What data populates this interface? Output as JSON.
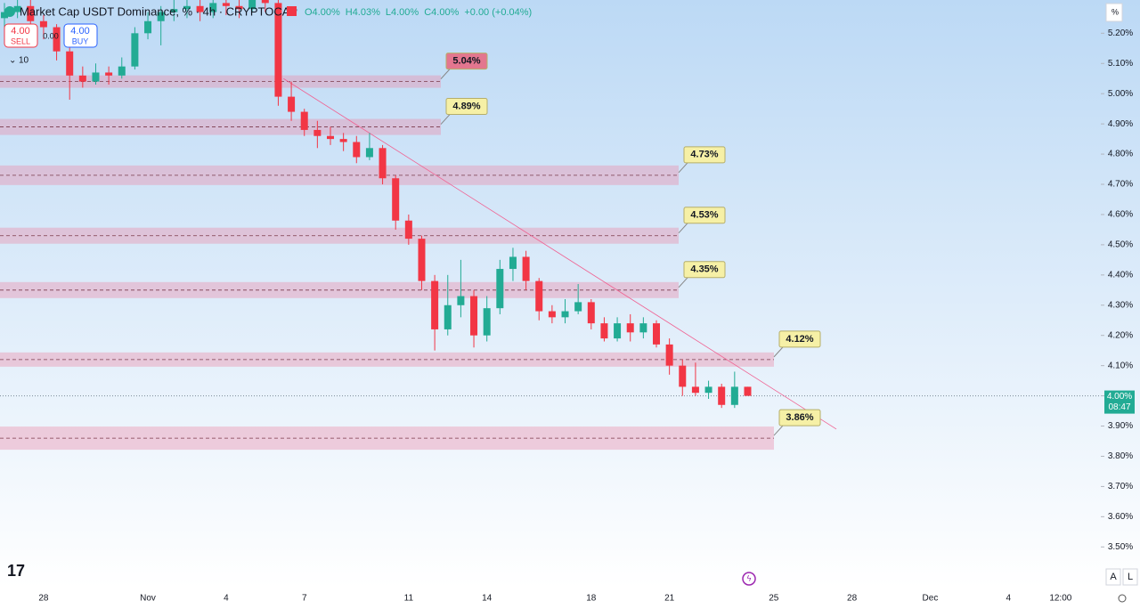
{
  "header": {
    "title": "Market Cap USDT Dominance, % · 4h · CRYPTOCAP",
    "ohlc": [
      "O4.00%",
      "H4.03%",
      "L4.00%",
      "C4.00%",
      "+0.00 (+0.04%)"
    ],
    "sell_price": "4.00",
    "sell_label": "SELL",
    "spread": "0.00",
    "buy_price": "4.00",
    "buy_label": "BUY",
    "indicators": "10",
    "axis_unit": "%",
    "countdown": "08:47",
    "scale_buttons": [
      "A",
      "L"
    ]
  },
  "chart_data": {
    "type": "candlestick",
    "categories": [
      null,
      null,
      null,
      "28",
      null,
      null,
      null,
      null,
      null,
      null,
      null,
      "Nov",
      null,
      null,
      null,
      null,
      null,
      "4",
      null,
      null,
      null,
      null,
      null,
      "7",
      null,
      null,
      null,
      null,
      null,
      null,
      null,
      "11",
      null,
      null,
      null,
      null,
      null,
      "14",
      null,
      null,
      null,
      null,
      null,
      null,
      null,
      "18",
      null,
      null,
      null,
      null,
      null,
      "21",
      null,
      null,
      null,
      null,
      null,
      null,
      null,
      "25",
      null,
      null,
      null,
      null,
      null,
      "28",
      null,
      null,
      null,
      null,
      null,
      "Dec",
      null,
      null,
      null,
      null,
      null,
      "4",
      null,
      null,
      null,
      "12:00",
      null
    ],
    "open": [
      5.25,
      5.27,
      5.29,
      5.24,
      5.22,
      5.14,
      5.06,
      5.04,
      5.07,
      5.06,
      5.09,
      5.2,
      5.24,
      5.27,
      5.28,
      5.29,
      5.27,
      5.3,
      5.29,
      5.28,
      5.31,
      5.3,
      4.99,
      4.94,
      4.88,
      4.86,
      4.85,
      4.84,
      4.79,
      4.82,
      4.72,
      4.58,
      4.52,
      4.38,
      4.22,
      4.3,
      4.33,
      4.2,
      4.29,
      4.42,
      4.46,
      4.38,
      4.28,
      4.26,
      4.28,
      4.31,
      4.24,
      4.19,
      4.24,
      4.21,
      4.24,
      4.17,
      4.1,
      4.03,
      4.01,
      4.03,
      3.97,
      4.03,
      null,
      null,
      null,
      null,
      null,
      null,
      null,
      null,
      null,
      null,
      null,
      null,
      null,
      null,
      null,
      null,
      null,
      null,
      null,
      null,
      null,
      null,
      null,
      null,
      null
    ],
    "high": [
      5.3,
      5.32,
      5.31,
      5.26,
      5.23,
      5.16,
      5.09,
      5.1,
      5.09,
      5.12,
      5.22,
      5.27,
      5.29,
      5.31,
      5.32,
      5.31,
      5.33,
      5.32,
      5.31,
      5.34,
      5.33,
      5.33,
      5.04,
      4.95,
      4.91,
      4.89,
      4.87,
      4.86,
      4.87,
      4.83,
      4.73,
      4.6,
      4.53,
      4.4,
      4.4,
      4.45,
      4.35,
      4.33,
      4.45,
      4.49,
      4.48,
      4.39,
      4.3,
      4.32,
      4.37,
      4.32,
      4.26,
      4.26,
      4.27,
      4.26,
      4.25,
      4.19,
      4.12,
      4.11,
      4.05,
      4.04,
      4.08,
      4.03,
      null,
      null,
      null,
      null,
      null,
      null,
      null,
      null,
      null,
      null,
      null,
      null,
      null,
      null,
      null,
      null,
      null,
      null,
      null,
      null,
      null,
      null,
      null,
      null,
      null
    ],
    "low": [
      5.22,
      5.25,
      5.21,
      5.18,
      5.11,
      4.98,
      5.02,
      5.03,
      5.03,
      5.05,
      5.08,
      5.18,
      5.16,
      5.24,
      5.25,
      5.24,
      5.25,
      5.26,
      5.25,
      5.27,
      5.27,
      4.96,
      4.91,
      4.86,
      4.82,
      4.83,
      4.81,
      4.77,
      4.78,
      4.7,
      4.55,
      4.5,
      4.35,
      4.15,
      4.2,
      4.26,
      4.16,
      4.18,
      4.27,
      4.38,
      4.35,
      4.25,
      4.24,
      4.24,
      4.27,
      4.22,
      4.18,
      4.18,
      4.18,
      4.19,
      4.16,
      4.07,
      4.0,
      4.0,
      3.99,
      3.96,
      3.96,
      4.0,
      null,
      null,
      null,
      null,
      null,
      null,
      null,
      null,
      null,
      null,
      null,
      null,
      null,
      null,
      null,
      null,
      null,
      null,
      null,
      null,
      null,
      null,
      null,
      null,
      null
    ],
    "close": [
      5.27,
      5.29,
      5.24,
      5.22,
      5.14,
      5.06,
      5.04,
      5.07,
      5.06,
      5.09,
      5.2,
      5.24,
      5.27,
      5.28,
      5.29,
      5.27,
      5.3,
      5.29,
      5.28,
      5.31,
      5.3,
      4.99,
      4.94,
      4.88,
      4.86,
      4.85,
      4.84,
      4.79,
      4.82,
      4.72,
      4.58,
      4.52,
      4.38,
      4.22,
      4.3,
      4.33,
      4.2,
      4.29,
      4.42,
      4.46,
      4.38,
      4.28,
      4.26,
      4.28,
      4.31,
      4.24,
      4.19,
      4.24,
      4.21,
      4.24,
      4.17,
      4.1,
      4.03,
      4.01,
      4.03,
      3.97,
      4.03,
      4.0,
      null,
      null,
      null,
      null,
      null,
      null,
      null,
      null,
      null,
      null,
      null,
      null,
      null,
      null,
      null,
      null,
      null,
      null,
      null,
      null,
      null,
      null,
      null,
      null,
      null
    ],
    "colors": {
      "up": "#22ab94",
      "down": "#f23645"
    },
    "ylim": [
      3.38,
      5.31
    ],
    "yticks": [
      {
        "value": 5.2,
        "label": "5.20%"
      },
      {
        "value": 5.1,
        "label": "5.10%"
      },
      {
        "value": 5.0,
        "label": "5.00%"
      },
      {
        "value": 4.9,
        "label": "4.90%"
      },
      {
        "value": 4.8,
        "label": "4.80%"
      },
      {
        "value": 4.7,
        "label": "4.70%"
      },
      {
        "value": 4.6,
        "label": "4.60%"
      },
      {
        "value": 4.5,
        "label": "4.50%"
      },
      {
        "value": 4.4,
        "label": "4.40%"
      },
      {
        "value": 4.3,
        "label": "4.30%"
      },
      {
        "value": 4.2,
        "label": "4.20%"
      },
      {
        "value": 4.1,
        "label": "4.10%"
      },
      {
        "value": 4.0,
        "label": "4.00%"
      },
      {
        "value": 3.9,
        "label": "3.90%"
      },
      {
        "value": 3.8,
        "label": "3.80%"
      },
      {
        "value": 3.7,
        "label": "3.70%"
      },
      {
        "value": 3.6,
        "label": "3.60%"
      },
      {
        "value": 3.5,
        "label": "3.50%"
      }
    ],
    "levels": {
      "values": [
        5.04,
        4.89,
        4.73,
        4.53,
        4.35,
        4.12,
        3.86
      ],
      "value_labels": [
        "5.04%",
        "4.89%",
        "4.73%",
        "4.53%",
        "4.35%",
        "4.12%",
        "3.86%"
      ]
    },
    "last_price": {
      "value": 4.0,
      "label": "4.00%"
    },
    "trendline": {
      "x": [
        21.4,
        63.8
      ],
      "values": [
        5.05,
        3.89
      ]
    }
  }
}
